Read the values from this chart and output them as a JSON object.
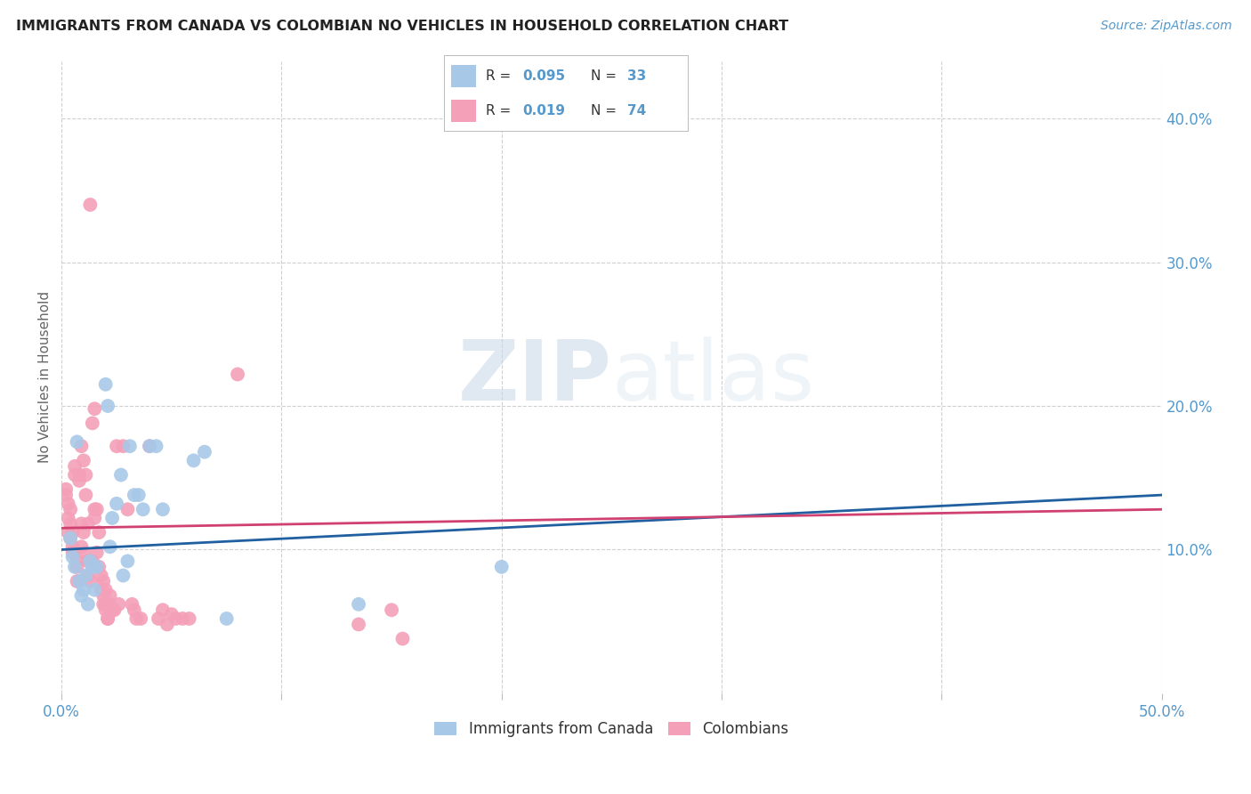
{
  "title": "IMMIGRANTS FROM CANADA VS COLOMBIAN NO VEHICLES IN HOUSEHOLD CORRELATION CHART",
  "source": "Source: ZipAtlas.com",
  "ylabel": "No Vehicles in Household",
  "xlim": [
    0.0,
    0.5
  ],
  "ylim": [
    0.0,
    0.44
  ],
  "xticks": [
    0.0,
    0.1,
    0.2,
    0.3,
    0.4,
    0.5
  ],
  "xticklabels": [
    "0.0%",
    "",
    "",
    "",
    "",
    "50.0%"
  ],
  "yticks": [
    0.1,
    0.2,
    0.3,
    0.4
  ],
  "yticklabels": [
    "10.0%",
    "20.0%",
    "30.0%",
    "40.0%"
  ],
  "legend_label_blue": "Immigrants from Canada",
  "legend_label_pink": "Colombians",
  "blue_color": "#a8c8e8",
  "pink_color": "#f4a0b8",
  "blue_line_color": "#2060a0",
  "pink_line_color": "#d04070",
  "blue_scatter": [
    [
      0.004,
      0.108
    ],
    [
      0.005,
      0.095
    ],
    [
      0.006,
      0.088
    ],
    [
      0.007,
      0.175
    ],
    [
      0.008,
      0.078
    ],
    [
      0.009,
      0.068
    ],
    [
      0.01,
      0.072
    ],
    [
      0.011,
      0.082
    ],
    [
      0.012,
      0.062
    ],
    [
      0.013,
      0.092
    ],
    [
      0.014,
      0.088
    ],
    [
      0.015,
      0.072
    ],
    [
      0.016,
      0.088
    ],
    [
      0.02,
      0.215
    ],
    [
      0.021,
      0.2
    ],
    [
      0.022,
      0.102
    ],
    [
      0.023,
      0.122
    ],
    [
      0.025,
      0.132
    ],
    [
      0.027,
      0.152
    ],
    [
      0.028,
      0.082
    ],
    [
      0.03,
      0.092
    ],
    [
      0.031,
      0.172
    ],
    [
      0.033,
      0.138
    ],
    [
      0.035,
      0.138
    ],
    [
      0.037,
      0.128
    ],
    [
      0.04,
      0.172
    ],
    [
      0.043,
      0.172
    ],
    [
      0.046,
      0.128
    ],
    [
      0.06,
      0.162
    ],
    [
      0.065,
      0.168
    ],
    [
      0.075,
      0.052
    ],
    [
      0.135,
      0.062
    ],
    [
      0.2,
      0.088
    ]
  ],
  "pink_scatter": [
    [
      0.002,
      0.138
    ],
    [
      0.002,
      0.142
    ],
    [
      0.003,
      0.132
    ],
    [
      0.003,
      0.112
    ],
    [
      0.003,
      0.122
    ],
    [
      0.004,
      0.128
    ],
    [
      0.004,
      0.108
    ],
    [
      0.004,
      0.118
    ],
    [
      0.005,
      0.098
    ],
    [
      0.005,
      0.102
    ],
    [
      0.005,
      0.112
    ],
    [
      0.006,
      0.152
    ],
    [
      0.006,
      0.158
    ],
    [
      0.007,
      0.078
    ],
    [
      0.007,
      0.088
    ],
    [
      0.007,
      0.092
    ],
    [
      0.008,
      0.152
    ],
    [
      0.008,
      0.148
    ],
    [
      0.009,
      0.102
    ],
    [
      0.009,
      0.118
    ],
    [
      0.009,
      0.172
    ],
    [
      0.01,
      0.098
    ],
    [
      0.01,
      0.112
    ],
    [
      0.01,
      0.162
    ],
    [
      0.011,
      0.152
    ],
    [
      0.011,
      0.138
    ],
    [
      0.012,
      0.092
    ],
    [
      0.012,
      0.082
    ],
    [
      0.012,
      0.118
    ],
    [
      0.013,
      0.34
    ],
    [
      0.013,
      0.078
    ],
    [
      0.014,
      0.188
    ],
    [
      0.014,
      0.092
    ],
    [
      0.015,
      0.128
    ],
    [
      0.015,
      0.122
    ],
    [
      0.015,
      0.198
    ],
    [
      0.016,
      0.128
    ],
    [
      0.016,
      0.098
    ],
    [
      0.017,
      0.112
    ],
    [
      0.017,
      0.088
    ],
    [
      0.018,
      0.082
    ],
    [
      0.018,
      0.072
    ],
    [
      0.019,
      0.078
    ],
    [
      0.019,
      0.068
    ],
    [
      0.019,
      0.062
    ],
    [
      0.02,
      0.072
    ],
    [
      0.02,
      0.062
    ],
    [
      0.02,
      0.058
    ],
    [
      0.021,
      0.052
    ],
    [
      0.021,
      0.052
    ],
    [
      0.022,
      0.062
    ],
    [
      0.022,
      0.068
    ],
    [
      0.023,
      0.058
    ],
    [
      0.024,
      0.058
    ],
    [
      0.025,
      0.172
    ],
    [
      0.026,
      0.062
    ],
    [
      0.028,
      0.172
    ],
    [
      0.03,
      0.128
    ],
    [
      0.032,
      0.062
    ],
    [
      0.033,
      0.058
    ],
    [
      0.034,
      0.052
    ],
    [
      0.036,
      0.052
    ],
    [
      0.04,
      0.172
    ],
    [
      0.044,
      0.052
    ],
    [
      0.046,
      0.058
    ],
    [
      0.048,
      0.048
    ],
    [
      0.05,
      0.055
    ],
    [
      0.052,
      0.052
    ],
    [
      0.055,
      0.052
    ],
    [
      0.058,
      0.052
    ],
    [
      0.08,
      0.222
    ],
    [
      0.135,
      0.048
    ],
    [
      0.15,
      0.058
    ],
    [
      0.155,
      0.038
    ]
  ],
  "watermark_zip": "ZIP",
  "watermark_atlas": "atlas",
  "background_color": "#ffffff",
  "grid_color": "#d0d0d0",
  "title_color": "#222222",
  "axis_tick_color": "#5599cc",
  "ylabel_color": "#666666"
}
